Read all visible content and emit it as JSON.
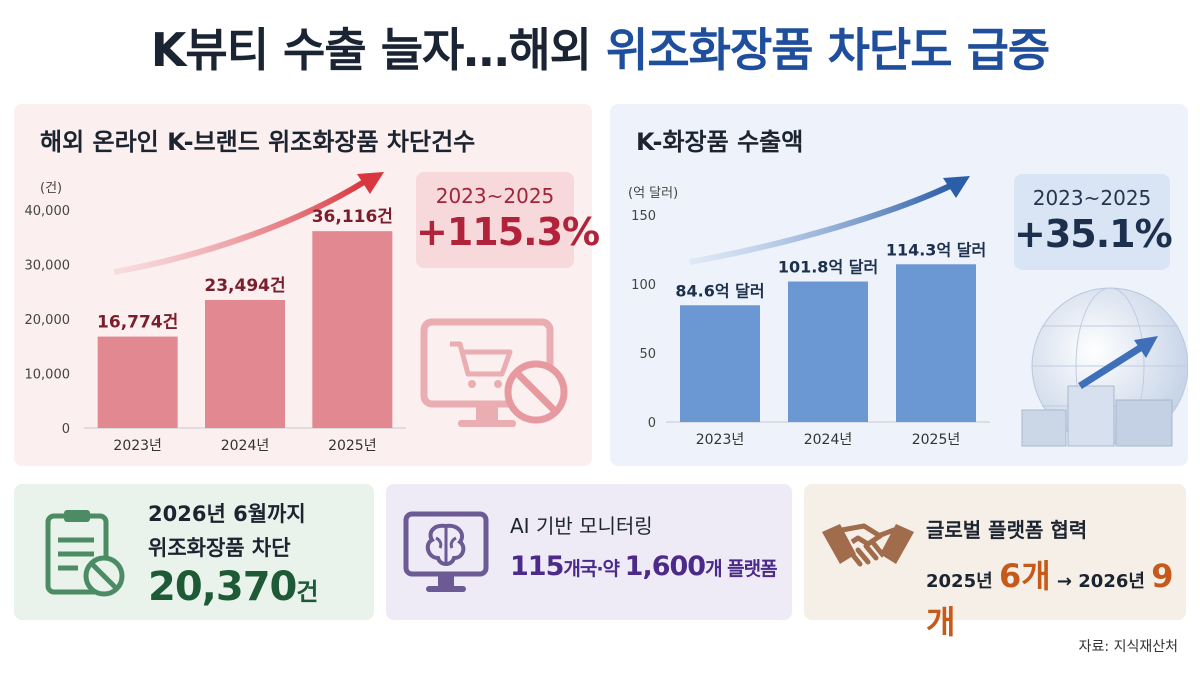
{
  "title": {
    "main": "K뷰티 수출 늘자…해외 ",
    "highlight": "위조화장품 차단도 급증"
  },
  "left_panel": {
    "title": "해외 온라인 K-브랜드 위조화장품 차단건수",
    "growth": {
      "period": "2023~2025",
      "value": "+115.3%"
    }
  },
  "right_panel": {
    "title": "K-화장품 수출액",
    "growth": {
      "period": "2023~2025",
      "value": "+35.1%"
    }
  },
  "chart_data": [
    {
      "type": "bar",
      "title": "해외 온라인 K-브랜드 위조화장품 차단건수",
      "unit": "(건)",
      "categories": [
        "2023년",
        "2024년",
        "2025년"
      ],
      "values": [
        16774,
        23494,
        36116
      ],
      "data_labels": [
        "16,774건",
        "23,494건",
        "36,116건"
      ],
      "ylim": [
        0,
        40000
      ],
      "yticks": [
        0,
        10000,
        20000,
        30000,
        40000
      ],
      "ytick_labels": [
        "0",
        "10,000",
        "20,000",
        "30,000",
        "40,000"
      ],
      "color": "#e28890"
    },
    {
      "type": "bar",
      "title": "K-화장품 수출액",
      "unit": "(억 달러)",
      "categories": [
        "2023년",
        "2024년",
        "2025년"
      ],
      "values": [
        84.6,
        101.8,
        114.3
      ],
      "data_labels": [
        "84.6억 달러",
        "101.8억 달러",
        "114.3억 달러"
      ],
      "ylim": [
        0,
        150
      ],
      "yticks": [
        0,
        50,
        100,
        150
      ],
      "ytick_labels": [
        "0",
        "50",
        "100",
        "150"
      ],
      "color": "#6b97d3"
    }
  ],
  "cards": {
    "block": {
      "line1": "2026년 6월까지",
      "line2": "위조화장품 차단",
      "big_number": "20,370",
      "big_unit": "건"
    },
    "ai": {
      "line1": "AI 기반 모니터링",
      "num1": "115",
      "unit1": "개국·약 ",
      "num2": "1,600",
      "unit2": "개 플랫폼"
    },
    "global": {
      "line1": "글로벌 플랫폼 협력",
      "year1": "2025년 ",
      "num1": "6개",
      "arrow": " → ",
      "year2": "2026년 ",
      "num2": "9개"
    }
  },
  "source": "자료: 지식재산처",
  "icons": [
    "upward-trend-arrow-icon",
    "cart-blocked-monitor-icon",
    "globe-containers-icon",
    "clipboard-block-icon",
    "ai-brain-monitor-icon",
    "handshake-icon"
  ]
}
